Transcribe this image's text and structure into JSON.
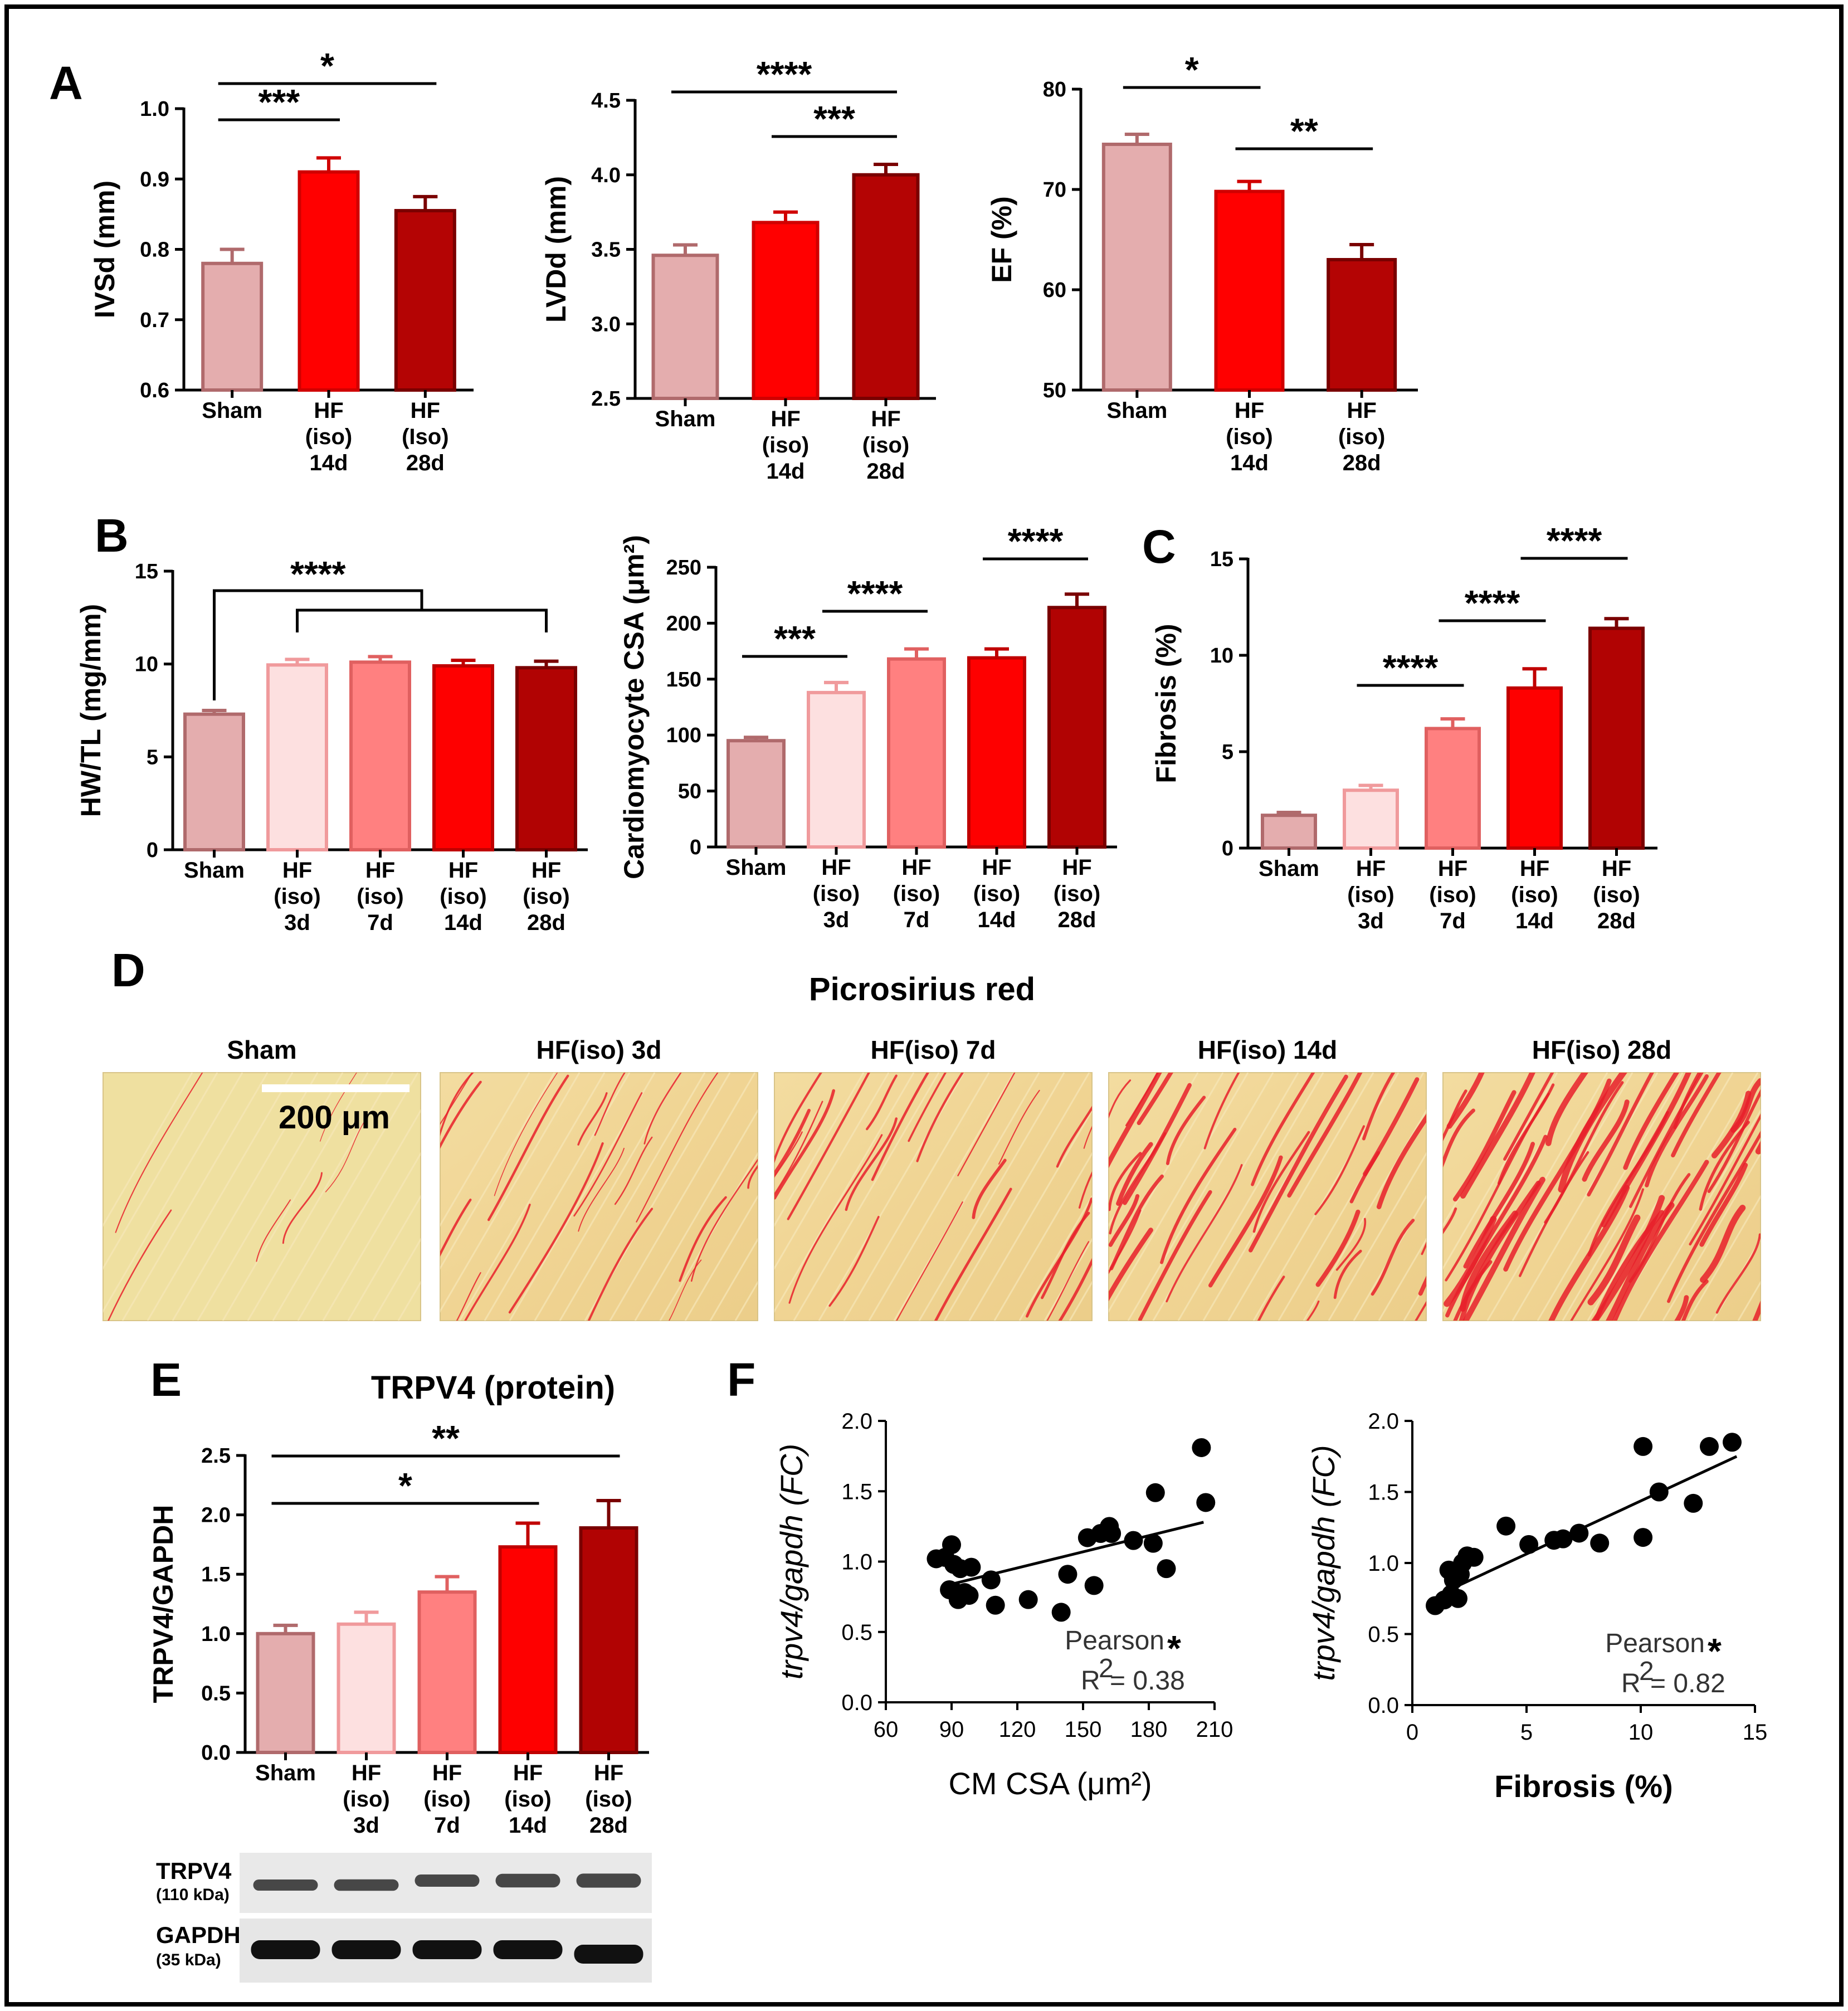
{
  "figure": {
    "panel_labels": [
      "A",
      "B",
      "C",
      "D",
      "E",
      "F"
    ],
    "colors": {
      "sham": "#e4adae",
      "d3": "#fde0e0",
      "d7": "#ff8080",
      "d14": "#fe0000",
      "d28": "#b10303",
      "d14_A": "#ff0000",
      "d28_A": "#b40404",
      "stroke_sham": "#b06a6c",
      "stroke_light": "#f09a9c",
      "stroke_dark": "#7a0000"
    }
  },
  "chart_data": [
    {
      "id": "A1",
      "type": "bar",
      "title": "",
      "ylabel": "IVSd (mm)",
      "ylim": [
        0.6,
        1.0
      ],
      "yticks": [
        "0.6",
        "0.7",
        "0.8",
        "0.9",
        "1.0"
      ],
      "categories": [
        [
          "Sham"
        ],
        [
          "HF",
          "(iso)",
          "14d"
        ],
        [
          "HF",
          "(Iso)",
          "28d"
        ]
      ],
      "values": [
        0.78,
        0.91,
        0.855
      ],
      "errors": [
        0.02,
        0.02,
        0.02
      ],
      "significance": [
        {
          "from": 0,
          "to": 2,
          "label": "*"
        },
        {
          "from": 0,
          "to": 1,
          "label": "***"
        }
      ]
    },
    {
      "id": "A2",
      "type": "bar",
      "title": "",
      "ylabel": "LVDd (mm)",
      "ylim": [
        2.5,
        4.5
      ],
      "yticks": [
        "2.5",
        "3.0",
        "3.5",
        "4.0",
        "4.5"
      ],
      "categories": [
        [
          "Sham"
        ],
        [
          "HF",
          "(iso)",
          "14d"
        ],
        [
          "HF",
          "(iso)",
          "28d"
        ]
      ],
      "values": [
        3.46,
        3.68,
        4.0
      ],
      "errors": [
        0.07,
        0.07,
        0.07
      ],
      "significance": [
        {
          "from": 0,
          "to": 2,
          "label": "****"
        },
        {
          "from": 1,
          "to": 2,
          "label": "***"
        }
      ]
    },
    {
      "id": "A3",
      "type": "bar",
      "title": "",
      "ylabel": "EF (%)",
      "ylim": [
        50,
        80
      ],
      "yticks": [
        "50",
        "60",
        "70",
        "80"
      ],
      "categories": [
        [
          "Sham"
        ],
        [
          "HF",
          "(iso)",
          "14d"
        ],
        [
          "HF",
          "(iso)",
          "28d"
        ]
      ],
      "values": [
        74.5,
        69.8,
        63.0
      ],
      "errors": [
        1.0,
        1.0,
        1.5
      ],
      "significance": [
        {
          "from": 0,
          "to": 1,
          "label": "*"
        },
        {
          "from": 1,
          "to": 2,
          "label": "**"
        }
      ]
    },
    {
      "id": "B1",
      "type": "bar",
      "title": "",
      "ylabel": "HW/TL (mg/mm)",
      "ylim": [
        0,
        15
      ],
      "yticks": [
        "0",
        "5",
        "10",
        "15"
      ],
      "categories": [
        [
          "Sham"
        ],
        [
          "HF",
          "(iso)",
          "3d"
        ],
        [
          "HF",
          "(iso)",
          "7d"
        ],
        [
          "HF",
          "(iso)",
          "14d"
        ],
        [
          "HF",
          "(iso)",
          "28d"
        ]
      ],
      "values": [
        7.3,
        9.95,
        10.1,
        9.9,
        9.8
      ],
      "errors": [
        0.2,
        0.3,
        0.3,
        0.3,
        0.35
      ],
      "significance": [
        {
          "from": 0,
          "to": "group",
          "label": "****"
        }
      ]
    },
    {
      "id": "B2",
      "type": "bar",
      "title": "",
      "ylabel": "Cardiomyocyte CSA (μm²)",
      "ylim": [
        0,
        250
      ],
      "yticks": [
        "0",
        "50",
        "100",
        "150",
        "200",
        "250"
      ],
      "categories": [
        [
          "Sham"
        ],
        [
          "HF",
          "(iso)",
          "3d"
        ],
        [
          "HF",
          "(iso)",
          "7d"
        ],
        [
          "HF",
          "(iso)",
          "14d"
        ],
        [
          "HF",
          "(iso)",
          "28d"
        ]
      ],
      "values": [
        95,
        138,
        168,
        169,
        214
      ],
      "errors": [
        3,
        9,
        9,
        8,
        12
      ],
      "significance": [
        {
          "from": 0,
          "to": 1,
          "label": "***"
        },
        {
          "from": 1,
          "to": 2,
          "label": "****"
        },
        {
          "from": 3,
          "to": 4,
          "label": "****"
        }
      ]
    },
    {
      "id": "C",
      "type": "bar",
      "title": "",
      "ylabel": "Fibrosis (%)",
      "ylim": [
        0,
        15
      ],
      "yticks": [
        "0",
        "5",
        "10",
        "15"
      ],
      "categories": [
        [
          "Sham"
        ],
        [
          "HF",
          "(iso)",
          "3d"
        ],
        [
          "HF",
          "(iso)",
          "7d"
        ],
        [
          "HF",
          "(iso)",
          "14d"
        ],
        [
          "HF",
          "(iso)",
          "28d"
        ]
      ],
      "values": [
        1.7,
        3.0,
        6.2,
        8.3,
        11.4
      ],
      "errors": [
        0.15,
        0.25,
        0.5,
        1.0,
        0.5
      ],
      "significance": [
        {
          "from": 1,
          "to": 2,
          "label": "****"
        },
        {
          "from": 2,
          "to": 3,
          "label": "****"
        },
        {
          "from": 3,
          "to": 4,
          "label": "****"
        }
      ]
    },
    {
      "id": "E",
      "type": "bar",
      "title": "TRPV4 (protein)",
      "ylabel": "TRPV4/GAPDH",
      "ylim": [
        0,
        2.5
      ],
      "yticks": [
        "0.0",
        "0.5",
        "1.0",
        "1.5",
        "2.0",
        "2.5"
      ],
      "categories": [
        [
          "Sham"
        ],
        [
          "HF",
          "(iso)",
          "3d"
        ],
        [
          "HF",
          "(iso)",
          "7d"
        ],
        [
          "HF",
          "(iso)",
          "14d"
        ],
        [
          "HF",
          "(iso)",
          "28d"
        ]
      ],
      "values": [
        1.0,
        1.08,
        1.35,
        1.73,
        1.89
      ],
      "errors": [
        0.07,
        0.1,
        0.13,
        0.2,
        0.23
      ],
      "significance": [
        {
          "from": 0,
          "to": 4,
          "label": "**"
        },
        {
          "from": 0,
          "to": 3,
          "label": "*"
        }
      ]
    },
    {
      "id": "F1",
      "type": "scatter",
      "title": "",
      "xlabel": "CM CSA (μm²)",
      "ylabel": "trpv4/gapdh (FC)",
      "xlim": [
        60,
        210
      ],
      "ylim": [
        0,
        2
      ],
      "xticks": [
        "60",
        "90",
        "120",
        "150",
        "180",
        "210"
      ],
      "yticks": [
        "0.0",
        "0.5",
        "1.0",
        "1.5",
        "2.0"
      ],
      "points": [
        [
          83,
          1.02
        ],
        [
          87,
          1.03
        ],
        [
          89,
          0.8
        ],
        [
          90,
          1.12
        ],
        [
          91,
          0.98
        ],
        [
          92,
          0.78
        ],
        [
          93,
          0.73
        ],
        [
          94,
          0.95
        ],
        [
          96,
          0.78
        ],
        [
          98,
          0.76
        ],
        [
          99,
          0.96
        ],
        [
          108,
          0.87
        ],
        [
          110,
          0.69
        ],
        [
          125,
          0.73
        ],
        [
          140,
          0.64
        ],
        [
          143,
          0.91
        ],
        [
          152,
          1.17
        ],
        [
          155,
          0.83
        ],
        [
          158,
          1.2
        ],
        [
          162,
          1.25
        ],
        [
          163,
          1.2
        ],
        [
          173,
          1.15
        ],
        [
          182,
          1.13
        ],
        [
          183,
          1.49
        ],
        [
          188,
          0.95
        ],
        [
          204,
          1.81
        ],
        [
          206,
          1.42
        ]
      ],
      "fit": [
        [
          90,
          0.84
        ],
        [
          205,
          1.28
        ]
      ],
      "stat_label": "Pearson",
      "stat_mark": "*",
      "r2_label": "R",
      "r2_sup": "2",
      "r2_value": "= 0.38"
    },
    {
      "id": "F2",
      "type": "scatter",
      "title": "",
      "xlabel": "Fibrosis (%)",
      "ylabel": "trpv4/gapdh (FC)",
      "xlim": [
        0,
        15
      ],
      "ylim": [
        0,
        2
      ],
      "xticks": [
        "0",
        "5",
        "10",
        "15"
      ],
      "yticks": [
        "0.0",
        "0.5",
        "1.0",
        "1.5",
        "2.0"
      ],
      "points": [
        [
          1.0,
          0.7
        ],
        [
          1.4,
          0.74
        ],
        [
          1.6,
          0.95
        ],
        [
          1.7,
          0.78
        ],
        [
          1.8,
          0.88
        ],
        [
          2.0,
          0.75
        ],
        [
          2.1,
          0.92
        ],
        [
          2.2,
          1.0
        ],
        [
          2.4,
          1.05
        ],
        [
          2.7,
          1.04
        ],
        [
          4.1,
          1.26
        ],
        [
          5.1,
          1.13
        ],
        [
          6.2,
          1.16
        ],
        [
          6.6,
          1.17
        ],
        [
          7.3,
          1.21
        ],
        [
          8.2,
          1.14
        ],
        [
          10.1,
          1.82
        ],
        [
          10.1,
          1.18
        ],
        [
          10.8,
          1.5
        ],
        [
          12.3,
          1.42
        ],
        [
          13.0,
          1.82
        ],
        [
          14.0,
          1.85
        ]
      ],
      "fit": [
        [
          1.2,
          0.78
        ],
        [
          14.2,
          1.75
        ]
      ],
      "stat_label": "Pearson",
      "stat_mark": "*",
      "r2_label": "R",
      "r2_sup": "2",
      "r2_value": "= 0.82"
    }
  ],
  "histology": {
    "title": "Picrosirius red",
    "panels": [
      "Sham",
      "HF(iso) 3d",
      "HF(iso) 7d",
      "HF(iso) 14d",
      "HF(iso) 28d"
    ],
    "scale_bar_label": "200 μm"
  },
  "blot": {
    "rows": [
      {
        "name": "TRPV4",
        "size": "(110 kDa)"
      },
      {
        "name": "GAPDH",
        "size": "(35 kDa)"
      }
    ]
  }
}
